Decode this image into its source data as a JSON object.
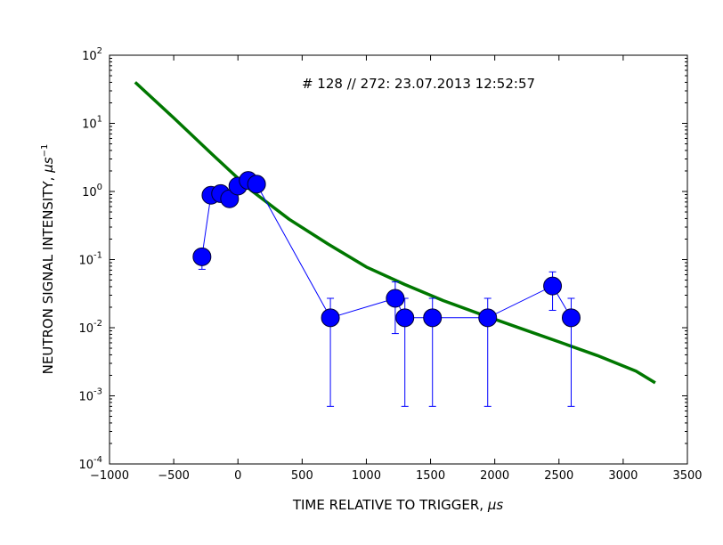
{
  "chart_data": {
    "type": "scatter",
    "title": "",
    "annotation": "# 128 // 272: 23.07.2013 12:52:57",
    "xlabel_main": "TIME RELATIVE TO TRIGGER, ",
    "xlabel_unit": "μs",
    "ylabel_main": "NEUTRON SIGNAL INTENSITY, ",
    "ylabel_unit": "μs",
    "ylabel_exp": "−1",
    "x_scale": "linear",
    "y_scale": "log",
    "xlim": [
      -1000,
      3500
    ],
    "ylim": [
      0.0001,
      100
    ],
    "x_ticks": [
      -1000,
      -500,
      0,
      500,
      1000,
      1500,
      2000,
      2500,
      3000,
      3500
    ],
    "x_tick_labels": [
      "−1000",
      "−500",
      "0",
      "500",
      "1000",
      "1500",
      "2000",
      "2500",
      "3000",
      "3500"
    ],
    "y_ticks": [
      0.0001,
      0.001,
      0.01,
      0.1,
      1,
      10,
      100
    ],
    "y_tick_mantissa": [
      "10",
      "10",
      "10",
      "10",
      "10",
      "10",
      "10"
    ],
    "y_tick_exponents": [
      "-4",
      "-3",
      "-2",
      "-1",
      "0",
      "1",
      "2"
    ],
    "grid": false,
    "legend": "none",
    "series": [
      {
        "kind": "measured",
        "color": "#0000ff",
        "marker": "circle",
        "x": [
          -280,
          -210,
          -135,
          -65,
          0,
          80,
          145,
          720,
          1225,
          1300,
          1515,
          1945,
          2450,
          2595
        ],
        "y": [
          0.11,
          0.88,
          0.93,
          0.78,
          1.2,
          1.45,
          1.28,
          0.014,
          0.027,
          0.014,
          0.014,
          0.014,
          0.041,
          0.014
        ],
        "err_low": [
          0.072,
          null,
          null,
          null,
          null,
          null,
          null,
          0.0007,
          0.0082,
          0.0007,
          0.0007,
          0.0007,
          0.018,
          0.0007
        ],
        "err_high": [
          0.133,
          null,
          null,
          null,
          null,
          null,
          null,
          0.027,
          0.047,
          0.027,
          0.027,
          0.027,
          0.066,
          0.027
        ]
      },
      {
        "kind": "fit",
        "color": "#007700",
        "x": [
          -800,
          -500,
          -200,
          100,
          400,
          700,
          1000,
          1300,
          1600,
          1900,
          2200,
          2500,
          2800,
          3100,
          3250
        ],
        "y": [
          40,
          12,
          3.5,
          1.05,
          0.39,
          0.17,
          0.078,
          0.043,
          0.025,
          0.0155,
          0.0098,
          0.0062,
          0.0039,
          0.0023,
          0.00155
        ]
      }
    ]
  }
}
